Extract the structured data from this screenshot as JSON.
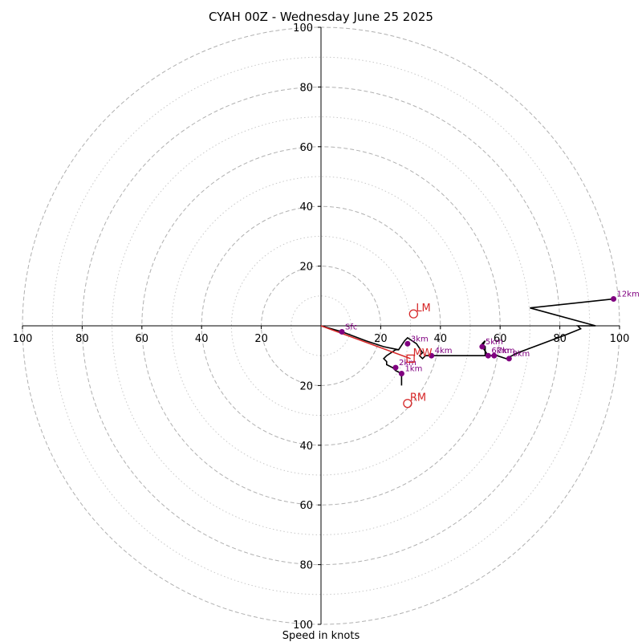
{
  "chart_data": {
    "type": "hodograph",
    "title": "CYAH 00Z - Wednesday June 25 2025",
    "xlabel": "Speed in knots",
    "units": "knots",
    "range": [
      -100,
      100
    ],
    "ring_major": [
      20,
      40,
      60,
      80,
      100
    ],
    "ring_minor": [
      10,
      30,
      50,
      70,
      90
    ],
    "x_tick_labels": [
      "100",
      "80",
      "60",
      "40",
      "20",
      "20",
      "40",
      "60",
      "80",
      "100"
    ],
    "y_tick_labels": [
      "100",
      "80",
      "60",
      "40",
      "20",
      "20",
      "40",
      "60",
      "80",
      "100"
    ],
    "grid": true,
    "colors": {
      "trace": "#000000",
      "height_marker": "#800080",
      "motion": "#d62728",
      "grid": "#b0b0b0"
    },
    "trace": [
      [
        0,
        0
      ],
      [
        7,
        -2
      ],
      [
        15,
        -5
      ],
      [
        21,
        -7
      ],
      [
        26,
        -8
      ],
      [
        28,
        -5
      ],
      [
        29,
        -4
      ],
      [
        32,
        -6
      ],
      [
        34,
        -9
      ],
      [
        33,
        -10
      ],
      [
        34,
        -11
      ],
      [
        35,
        -10
      ],
      [
        36,
        -10
      ],
      [
        48,
        -10
      ],
      [
        55,
        -10
      ],
      [
        55,
        -7
      ],
      [
        54,
        -6
      ],
      [
        55,
        -5
      ],
      [
        54,
        -7
      ],
      [
        56,
        -10
      ],
      [
        59,
        -10
      ],
      [
        62,
        -11
      ],
      [
        66,
        -9
      ],
      [
        82,
        -3
      ],
      [
        87,
        -1
      ],
      [
        86,
        0
      ],
      [
        92,
        0
      ],
      [
        70,
        6
      ],
      [
        98,
        9
      ]
    ],
    "low_level_trace": [
      [
        27,
        -20
      ],
      [
        27,
        -18
      ],
      [
        27,
        -16
      ],
      [
        25,
        -15
      ],
      [
        24,
        -14
      ],
      [
        22,
        -13
      ],
      [
        22,
        -12
      ],
      [
        21,
        -11
      ],
      [
        22,
        -10
      ],
      [
        25,
        -8
      ],
      [
        26,
        -8
      ]
    ],
    "height_markers": [
      {
        "label": "Sfc",
        "u": 7,
        "v": -2
      },
      {
        "label": "1km",
        "u": 27,
        "v": -16
      },
      {
        "label": "2km",
        "u": 25,
        "v": -14
      },
      {
        "label": "3km",
        "u": 29,
        "v": -6
      },
      {
        "label": "4km",
        "u": 37,
        "v": -10
      },
      {
        "label": "5km",
        "u": 54,
        "v": -7
      },
      {
        "label": "6km",
        "u": 56,
        "v": -10
      },
      {
        "label": "7km",
        "u": 58,
        "v": -10
      },
      {
        "label": "8km",
        "u": 63,
        "v": -11
      },
      {
        "label": "12km",
        "u": 98,
        "v": 9
      }
    ],
    "storm_motion": [
      {
        "label": "LM",
        "u": 31,
        "v": 4,
        "marker": "circle"
      },
      {
        "label": "RM",
        "u": 29,
        "v": -26,
        "marker": "circle"
      },
      {
        "label": "MW",
        "u": 30,
        "v": -11,
        "marker": "square"
      }
    ],
    "shear_vector": {
      "from": [
        0,
        0
      ],
      "to": [
        30,
        -11
      ]
    }
  }
}
